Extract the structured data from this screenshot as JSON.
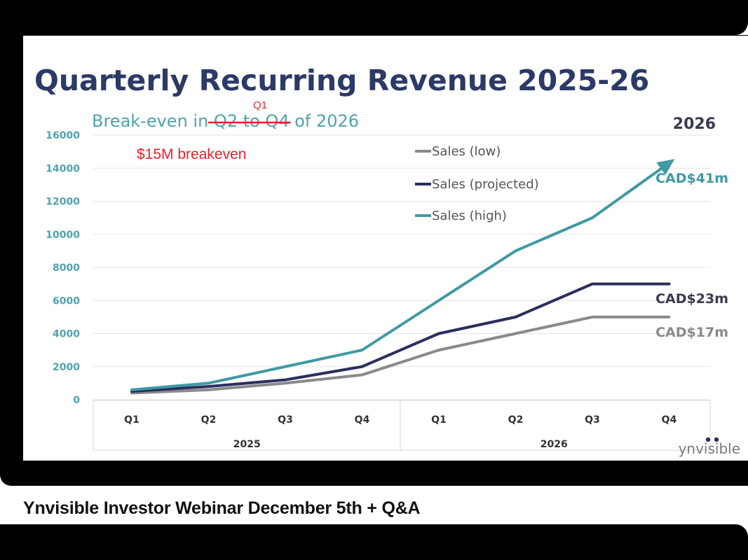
{
  "colors": {
    "title": "#2b3a67",
    "subtitle": "#4ea3ad",
    "tick": "#4ea3ad",
    "grid": "#e3e3e3",
    "annotation": "#e8202a",
    "low": "#8a8a8a",
    "projected": "#2b2f5e",
    "high": "#3f9aa4",
    "label_dark": "#3a3a52"
  },
  "caption": "Ynvisible Investor Webinar December 5th + Q&A",
  "brand": "ynvisible",
  "chart_data": {
    "type": "line",
    "title": "Quarterly Recurring Revenue 2025-26",
    "subtitle": {
      "prefix": "Break-even in",
      "struck": "Q2 to Q4",
      "suffix": "of 2026"
    },
    "annotations": {
      "correction": "Q1",
      "breakeven": "$15M breakeven"
    },
    "year_marker": "2026",
    "categories": [
      "Q1",
      "Q2",
      "Q3",
      "Q4",
      "Q1",
      "Q2",
      "Q3",
      "Q4"
    ],
    "groups": [
      {
        "label": "2025",
        "span": [
          0,
          3
        ]
      },
      {
        "label": "2026",
        "span": [
          4,
          7
        ]
      }
    ],
    "ylim": [
      0,
      16000
    ],
    "yticks": [
      0,
      2000,
      4000,
      6000,
      8000,
      10000,
      12000,
      14000,
      16000
    ],
    "grid": true,
    "legend_position": "top-right",
    "series": [
      {
        "name": "Sales (low)",
        "key": "low",
        "values": [
          400,
          600,
          1000,
          1500,
          3000,
          4000,
          5000,
          5000
        ],
        "end_label": "CAD$17m",
        "arrow": false
      },
      {
        "name": "Sales (projected)",
        "key": "projected",
        "values": [
          500,
          800,
          1200,
          2000,
          4000,
          5000,
          7000,
          7000
        ],
        "end_label": "CAD$23m",
        "arrow": false
      },
      {
        "name": "Sales (high)",
        "key": "high",
        "values": [
          600,
          1000,
          2000,
          3000,
          6000,
          9000,
          11000,
          15000
        ],
        "end_label": "CAD$41m",
        "arrow": true
      }
    ]
  }
}
